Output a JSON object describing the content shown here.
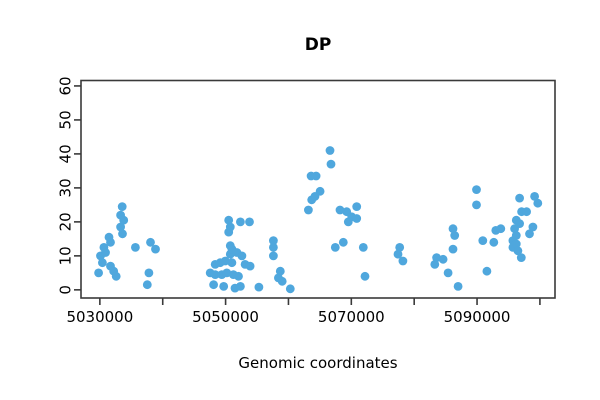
{
  "chart_data": {
    "type": "scatter",
    "title": "DP",
    "xlabel": "Genomic coordinates",
    "ylabel": "",
    "grid": false,
    "legend_position": "none",
    "xlim": [
      5027000,
      5102400
    ],
    "ylim": [
      -2.4,
      61.6
    ],
    "x_ticks": [
      {
        "value": 5030000,
        "label": "5030000"
      },
      {
        "value": 5040000,
        "label": ""
      },
      {
        "value": 5050000,
        "label": "5050000"
      },
      {
        "value": 5060000,
        "label": ""
      },
      {
        "value": 5070000,
        "label": "5070000"
      },
      {
        "value": 5080000,
        "label": ""
      },
      {
        "value": 5090000,
        "label": "5090000"
      },
      {
        "value": 5100000,
        "label": ""
      }
    ],
    "y_ticks": [
      {
        "value": 0,
        "label": "0"
      },
      {
        "value": 10,
        "label": "10"
      },
      {
        "value": 20,
        "label": "20"
      },
      {
        "value": 30,
        "label": "30"
      },
      {
        "value": 40,
        "label": "40"
      },
      {
        "value": 50,
        "label": "50"
      },
      {
        "value": 60,
        "label": "60"
      }
    ],
    "marker": {
      "shape": "filled-circle",
      "color": "#4FA7DD",
      "radius_px": 4.4
    },
    "frame_color": "#3a3a3a",
    "series": [
      {
        "name": "DP",
        "points": [
          [
            5029800,
            5
          ],
          [
            5030100,
            10
          ],
          [
            5030400,
            8
          ],
          [
            5030650,
            12.5
          ],
          [
            5030900,
            11
          ],
          [
            5031450,
            15.5
          ],
          [
            5031700,
            14
          ],
          [
            5031700,
            7
          ],
          [
            5032200,
            5.5
          ],
          [
            5032600,
            4
          ],
          [
            5033300,
            22
          ],
          [
            5033300,
            18.5
          ],
          [
            5033550,
            24.5
          ],
          [
            5033600,
            16.5
          ],
          [
            5033800,
            20.5
          ],
          [
            5035650,
            12.5
          ],
          [
            5037550,
            1.5
          ],
          [
            5037800,
            5
          ],
          [
            5038050,
            14
          ],
          [
            5038850,
            12
          ],
          [
            5047550,
            5
          ],
          [
            5048100,
            1.5
          ],
          [
            5048350,
            7.5
          ],
          [
            5048350,
            4.5
          ],
          [
            5049150,
            8
          ],
          [
            5049400,
            4.5
          ],
          [
            5049700,
            1
          ],
          [
            5049950,
            8.5
          ],
          [
            5050200,
            5
          ],
          [
            5050500,
            20.5
          ],
          [
            5050500,
            17
          ],
          [
            5050750,
            18.5
          ],
          [
            5050750,
            13
          ],
          [
            5050750,
            10.5
          ],
          [
            5051000,
            12
          ],
          [
            5051000,
            8
          ],
          [
            5051250,
            4.5
          ],
          [
            5051500,
            0.5
          ],
          [
            5051800,
            11
          ],
          [
            5052050,
            4
          ],
          [
            5052350,
            20
          ],
          [
            5052350,
            1
          ],
          [
            5052600,
            10
          ],
          [
            5053100,
            7.5
          ],
          [
            5053800,
            20
          ],
          [
            5053900,
            7
          ],
          [
            5055300,
            0.8
          ],
          [
            5057600,
            14.5
          ],
          [
            5057600,
            12.5
          ],
          [
            5057600,
            10
          ],
          [
            5058400,
            3.5
          ],
          [
            5058700,
            5.5
          ],
          [
            5059000,
            2.5
          ],
          [
            5060300,
            0.3
          ],
          [
            5063170,
            23.5
          ],
          [
            5063600,
            33.5
          ],
          [
            5063700,
            26.5
          ],
          [
            5064230,
            27.5
          ],
          [
            5064400,
            33.5
          ],
          [
            5065030,
            29
          ],
          [
            5066610,
            41
          ],
          [
            5066770,
            37
          ],
          [
            5067450,
            12.5
          ],
          [
            5068200,
            23.5
          ],
          [
            5068730,
            14
          ],
          [
            5069260,
            23
          ],
          [
            5069520,
            20
          ],
          [
            5070060,
            21.5
          ],
          [
            5070850,
            24.5
          ],
          [
            5070850,
            21
          ],
          [
            5071900,
            12.5
          ],
          [
            5072170,
            4
          ],
          [
            5077420,
            10.5
          ],
          [
            5077690,
            12.5
          ],
          [
            5078210,
            8.5
          ],
          [
            5083280,
            7.5
          ],
          [
            5083560,
            9.5
          ],
          [
            5084600,
            9
          ],
          [
            5085390,
            5
          ],
          [
            5086180,
            18
          ],
          [
            5086180,
            12
          ],
          [
            5086450,
            16
          ],
          [
            5086980,
            1
          ],
          [
            5089920,
            29.5
          ],
          [
            5089920,
            25
          ],
          [
            5090920,
            14.5
          ],
          [
            5091560,
            5.5
          ],
          [
            5092670,
            14
          ],
          [
            5092990,
            17.5
          ],
          [
            5093780,
            18
          ],
          [
            5095710,
            14.5
          ],
          [
            5095710,
            12.5
          ],
          [
            5095970,
            18
          ],
          [
            5096240,
            20.5
          ],
          [
            5096240,
            16
          ],
          [
            5096240,
            13.5
          ],
          [
            5096500,
            11.5
          ],
          [
            5096770,
            27
          ],
          [
            5096770,
            19.5
          ],
          [
            5097040,
            9.5
          ],
          [
            5097090,
            23
          ],
          [
            5097880,
            23
          ],
          [
            5098350,
            16.5
          ],
          [
            5098880,
            18.5
          ],
          [
            5099150,
            27.5
          ],
          [
            5099670,
            25.5
          ]
        ]
      }
    ]
  }
}
